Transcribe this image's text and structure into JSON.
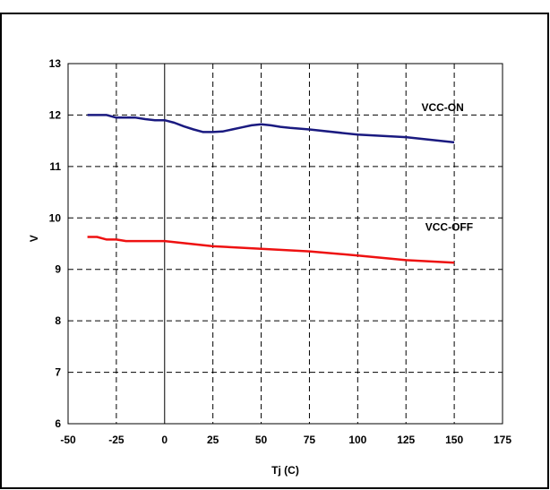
{
  "chart_data": {
    "type": "line",
    "xlabel": "Tj (C)",
    "ylabel": "V",
    "xlim": [
      -50,
      175
    ],
    "ylim": [
      6,
      13
    ],
    "xticks": [
      -50,
      -25,
      0,
      25,
      50,
      75,
      100,
      125,
      150,
      175
    ],
    "xtick_labels": [
      "-50",
      "-25",
      "0",
      "25",
      "50",
      "75",
      "100",
      "125",
      "150",
      "175"
    ],
    "yticks": [
      6,
      7,
      8,
      9,
      10,
      11,
      12,
      13
    ],
    "ytick_labels": [
      "6",
      "7",
      "8",
      "9",
      "10",
      "11",
      "12",
      "13"
    ],
    "grid": true,
    "series": [
      {
        "name": "VCC-ON",
        "color": "#1a1a80",
        "x": [
          -40,
          -35,
          -30,
          -25,
          -20,
          -15,
          -10,
          -5,
          0,
          5,
          10,
          15,
          20,
          25,
          30,
          35,
          40,
          45,
          50,
          55,
          60,
          65,
          75,
          100,
          125,
          150
        ],
        "y": [
          12.0,
          12.0,
          12.0,
          11.95,
          11.95,
          11.95,
          11.92,
          11.9,
          11.9,
          11.85,
          11.78,
          11.72,
          11.67,
          11.67,
          11.68,
          11.72,
          11.76,
          11.8,
          11.82,
          11.8,
          11.77,
          11.75,
          11.72,
          11.62,
          11.57,
          11.47
        ]
      },
      {
        "name": "VCC-OFF",
        "color": "#ee1111",
        "x": [
          -40,
          -35,
          -30,
          -25,
          -20,
          -15,
          0,
          25,
          50,
          75,
          100,
          125,
          150
        ],
        "y": [
          9.63,
          9.63,
          9.58,
          9.58,
          9.55,
          9.55,
          9.55,
          9.45,
          9.4,
          9.35,
          9.27,
          9.18,
          9.13
        ]
      }
    ]
  }
}
